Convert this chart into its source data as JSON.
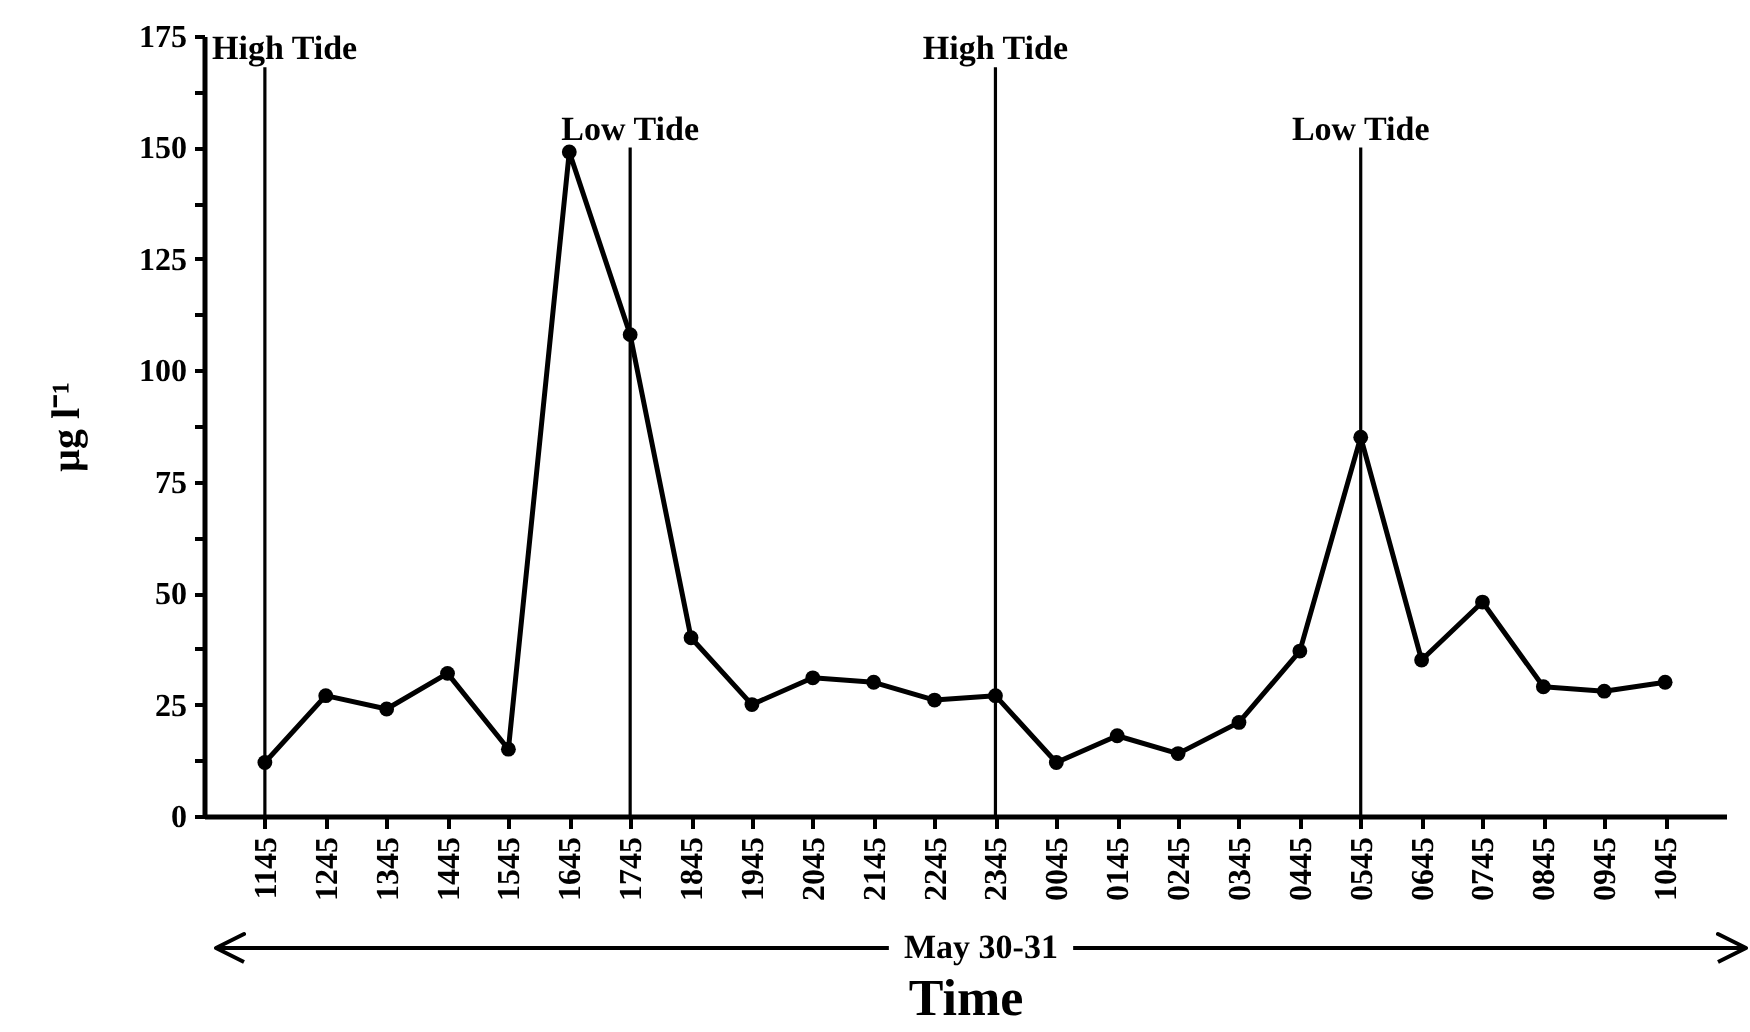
{
  "chart_data": {
    "type": "line",
    "xlabel": "Time",
    "ylabel": "µg l⁻¹",
    "categories": [
      "1145",
      "1245",
      "1345",
      "1445",
      "1545",
      "1645",
      "1745",
      "1845",
      "1945",
      "2045",
      "2145",
      "2245",
      "2345",
      "0045",
      "0145",
      "0245",
      "0345",
      "0445",
      "0545",
      "0645",
      "0745",
      "0845",
      "0945",
      "1045"
    ],
    "values": [
      12,
      27,
      24,
      32,
      15,
      149,
      108,
      40,
      25,
      31,
      30,
      26,
      27,
      12,
      18,
      14,
      21,
      37,
      85,
      35,
      48,
      29,
      28,
      30
    ],
    "color": "#000000",
    "ylim": [
      0,
      175
    ],
    "yticks": [
      0,
      {
        "value": 12.5,
        "label": null
      },
      25,
      {
        "value": 37.5,
        "label": null
      },
      50,
      {
        "value": 62.5,
        "label": null
      },
      75,
      {
        "value": 87.5,
        "label": null
      },
      100,
      {
        "value": 112.5,
        "label": null
      },
      125,
      {
        "value": 137.5,
        "label": null
      },
      150,
      {
        "value": 162.5,
        "label": null
      },
      175
    ],
    "marker": "circle",
    "line_style": "solid",
    "grid": false,
    "ref_lines": [
      {
        "axis": "x",
        "value": "1145",
        "label": "High Tide",
        "color": "#000000"
      },
      {
        "axis": "x",
        "value": "1745",
        "label": "Low Tide",
        "color": "#000000"
      },
      {
        "axis": "x",
        "value": "2345",
        "label": "High Tide",
        "color": "#000000"
      },
      {
        "axis": "x",
        "value": "0545",
        "label": "Low Tide",
        "color": "#000000"
      }
    ],
    "annotations": [
      "May 30-31"
    ]
  }
}
